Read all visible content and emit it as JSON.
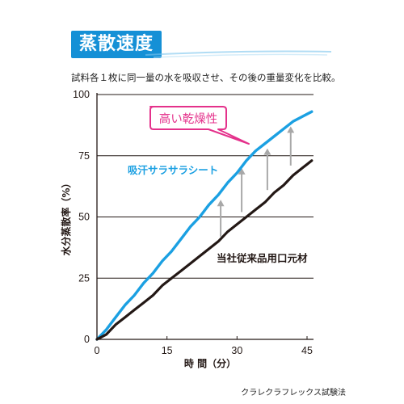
{
  "header": {
    "title": "蒸散速度",
    "subtitle": "試料各１枚に同一量の水を吸収させ、その後の重量変化を比較。"
  },
  "footer": {
    "credit": "クラレクラフレックス試験法"
  },
  "colors": {
    "title_bg": "#1590d6",
    "series_fast": "#1ba0e2",
    "series_slow": "#231815",
    "arrow": "#a8a8a8",
    "callout": "#e4318b"
  },
  "chart_data": {
    "type": "line",
    "title": "",
    "xlabel": "時 間（分）",
    "ylabel": "水分蒸散率（%）",
    "xlim": [
      0,
      45
    ],
    "ylim": [
      0,
      100
    ],
    "xticks": [
      0,
      15,
      30,
      45
    ],
    "yticks": [
      0,
      25,
      50,
      75,
      100
    ],
    "grid": "horizontal",
    "series": [
      {
        "name": "吸汗サラサラシート",
        "color": "#1ba0e2",
        "x": [
          0,
          2,
          4,
          6,
          8,
          10,
          12,
          14,
          16,
          18,
          20,
          22,
          24,
          26,
          28,
          30,
          32,
          34,
          36,
          38,
          40,
          42,
          44,
          46
        ],
        "y": [
          0,
          4,
          9,
          14,
          18,
          23,
          27,
          32,
          36,
          41,
          46,
          50,
          55,
          59,
          64,
          68,
          73,
          77,
          80,
          83,
          86,
          89,
          91,
          93
        ]
      },
      {
        "name": "当社従来品用口元材",
        "color": "#231815",
        "x": [
          0,
          2,
          4,
          6,
          8,
          10,
          12,
          14,
          16,
          18,
          20,
          22,
          24,
          26,
          28,
          30,
          32,
          34,
          36,
          38,
          40,
          42,
          44,
          46
        ],
        "y": [
          0,
          2,
          6,
          9,
          12,
          15,
          18,
          22,
          25,
          28,
          31,
          34,
          37,
          40,
          44,
          47,
          50,
          53,
          56,
          60,
          63,
          67,
          70,
          73
        ]
      }
    ],
    "annotations": [
      {
        "text": "高い乾燥性",
        "style": "callout"
      }
    ],
    "arrows": [
      {
        "x": 26.5,
        "from": 42,
        "to": 57
      },
      {
        "x": 31,
        "from": 52,
        "to": 70
      },
      {
        "x": 36.5,
        "from": 61,
        "to": 78
      },
      {
        "x": 41.5,
        "from": 71,
        "to": 87
      }
    ]
  }
}
